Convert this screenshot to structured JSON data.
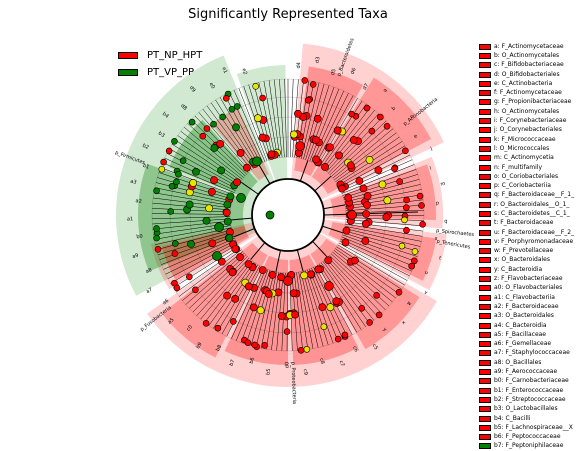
{
  "title": "Significantly Represented Taxa",
  "groups": [
    {
      "name": "PT_NP_HPT",
      "color": "#ff0000"
    },
    {
      "name": "PT_VP_PP",
      "color": "#008000"
    }
  ],
  "colors": {
    "red_fill": "#ff0000",
    "green_fill": "#008000",
    "node_yellow": "#e6e600",
    "line": "#000000"
  },
  "taxa": [
    {
      "label": "a: F_Actinomycetaceae",
      "group": "red"
    },
    {
      "label": "b: O_Actinomycetales",
      "group": "red"
    },
    {
      "label": "c: F_Bifidobacteriaceae",
      "group": "red"
    },
    {
      "label": "d: O_Bifidobacteriales",
      "group": "red"
    },
    {
      "label": "e: C_Actinobacteria",
      "group": "red"
    },
    {
      "label": "f: F_Actinomycetaceae",
      "group": "red"
    },
    {
      "label": "g: F_Propionibacteriaceae",
      "group": "red"
    },
    {
      "label": "h: O_Actinomycetales",
      "group": "red"
    },
    {
      "label": "i: F_Corynebacteriaceae",
      "group": "red"
    },
    {
      "label": "j: O_Corynebacteriales",
      "group": "red"
    },
    {
      "label": "k: F_Micrococcaceae",
      "group": "red"
    },
    {
      "label": "l: O_Micrococcales",
      "group": "red"
    },
    {
      "label": "m: C_Actinomycetia",
      "group": "red"
    },
    {
      "label": "n: F_multifamily",
      "group": "red"
    },
    {
      "label": "o: O_Coriobacteriales",
      "group": "red"
    },
    {
      "label": "p: C_Coriobacteriia",
      "group": "red"
    },
    {
      "label": "q: F_Bacteroidaceae__F_1_",
      "group": "red"
    },
    {
      "label": "r: O_Bacteroidales__O_1_",
      "group": "red"
    },
    {
      "label": "s: C_Bacteroidetes__C_1_",
      "group": "red"
    },
    {
      "label": "t: F_Bacteroidaceae",
      "group": "red"
    },
    {
      "label": "u: F_Bacteroidaceae__F_2_",
      "group": "red"
    },
    {
      "label": "v: F_Porphyromonadaceae",
      "group": "red"
    },
    {
      "label": "w: F_Prevotellaceae",
      "group": "red"
    },
    {
      "label": "x: O_Bacteroidales",
      "group": "red"
    },
    {
      "label": "y: C_Bacteroidia",
      "group": "red"
    },
    {
      "label": "z: F_Flavobacteriaceae",
      "group": "red"
    },
    {
      "label": "a0: O_Flavobacteriales",
      "group": "red"
    },
    {
      "label": "a1: C_Flavobacteriia",
      "group": "red"
    },
    {
      "label": "a2: F_Bacteroidaceae",
      "group": "red"
    },
    {
      "label": "a3: O_Bacteroidales",
      "group": "red"
    },
    {
      "label": "a4: C_Bacteroidia",
      "group": "red"
    },
    {
      "label": "a5: F_Bacillaceae",
      "group": "red"
    },
    {
      "label": "a6: F_Gemellaceae",
      "group": "red"
    },
    {
      "label": "a7: F_Staphylococcaceae",
      "group": "red"
    },
    {
      "label": "a8: O_Bacillales",
      "group": "red"
    },
    {
      "label": "a9: F_Aerococcaceae",
      "group": "red"
    },
    {
      "label": "b0: F_Carnobacteriaceae",
      "group": "red"
    },
    {
      "label": "b1: F_Enterococcaceae",
      "group": "red"
    },
    {
      "label": "b2: F_Streptococcaceae",
      "group": "red"
    },
    {
      "label": "b3: O_Lactobacillales",
      "group": "red"
    },
    {
      "label": "b4: C_Bacilli",
      "group": "red"
    },
    {
      "label": "b5: F_Lachnospiraceae__X",
      "group": "red"
    },
    {
      "label": "b6: F_Peptococcaceae",
      "group": "red"
    },
    {
      "label": "b7: F_Peptoniphilaceae",
      "group": "green"
    }
  ],
  "phyla": [
    {
      "label": "p_Bacteroidetes",
      "group": "red"
    },
    {
      "label": "p_Actinobacteria",
      "group": "red"
    },
    {
      "label": "p_Spirochaetes",
      "group": "red"
    },
    {
      "label": "p_Tenericutes",
      "group": "red"
    },
    {
      "label": "p_Proteobacteria",
      "group": "red"
    },
    {
      "label": "p_Fusobacteria",
      "group": "red"
    },
    {
      "label": "p_Firmicutes",
      "group": "green"
    }
  ],
  "clade_labels": {
    "d4": "d4",
    "d3": "d3",
    "d5": "d5",
    "d6": "d6",
    "d7": "d7",
    "a": "a",
    "b": "b",
    "c": "c",
    "e": "e",
    "j": "j",
    "l": "l",
    "m": "m",
    "p": "p",
    "q": "q",
    "s": "s",
    "t": "t",
    "u": "u",
    "v": "v",
    "w": "w",
    "x": "x",
    "y": "y",
    "c5": "c5",
    "c6": "c6",
    "c7": "c7",
    "c8": "c8",
    "c9": "c9",
    "d0": "d0",
    "b5": "b5",
    "b6": "b6",
    "b7": "b7",
    "b8": "b8",
    "b9": "b9",
    "c0": "c0",
    "a5": "a5",
    "a6": "a6",
    "a7": "a7",
    "a8": "a8",
    "a9": "a9",
    "b0": "b0",
    "a1": "a1",
    "a2": "a2",
    "a3": "a3",
    "b1": "b1",
    "b2": "b2",
    "b3": "b3",
    "b4": "b4",
    "d8": "d8",
    "d9": "d9",
    "e0": "e0",
    "e1": "e1",
    "e2": "e2"
  }
}
